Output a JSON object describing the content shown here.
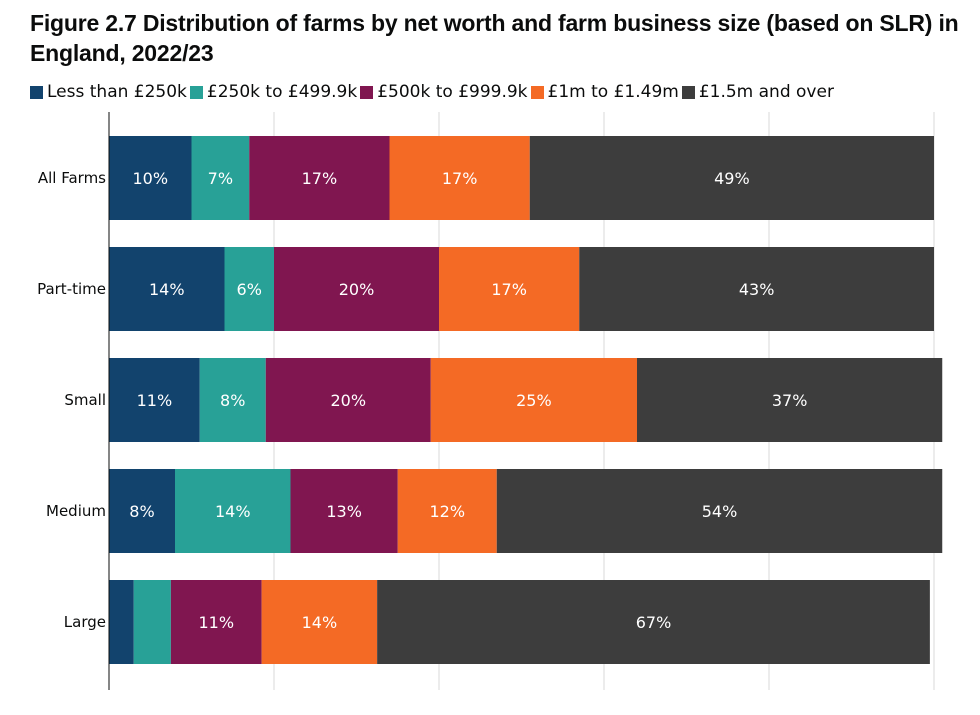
{
  "title": "Figure 2.7 Distribution of farms by net worth and farm business size (based on SLR) in England, 2022/23",
  "chart_data": {
    "type": "bar",
    "orientation": "horizontal",
    "stacked": true,
    "title": "Figure 2.7 Distribution of farms by net worth and farm business size (based on SLR) in England, 2022/23",
    "xlabel": "",
    "ylabel": "",
    "xlim": [
      0,
      100
    ],
    "grid": true,
    "legend_position": "top",
    "categories": [
      "All Farms",
      "Part-time",
      "Small",
      "Medium",
      "Large"
    ],
    "series": [
      {
        "name": "Less than £250k",
        "color": "#12436d",
        "values": [
          10,
          14,
          11,
          8,
          3
        ],
        "labels": [
          "10%",
          "14%",
          "11%",
          "8%",
          ""
        ]
      },
      {
        "name": "£250k to £499.9k",
        "color": "#28a197",
        "values": [
          7,
          6,
          8,
          14,
          4.5
        ],
        "labels": [
          "7%",
          "6%",
          "8%",
          "14%",
          ""
        ]
      },
      {
        "name": "£500k to £999.9k",
        "color": "#801650",
        "values": [
          17,
          20,
          20,
          13,
          11
        ],
        "labels": [
          "17%",
          "20%",
          "20%",
          "13%",
          "11%"
        ]
      },
      {
        "name": "£1m to £1.49m",
        "color": "#f46a25",
        "values": [
          17,
          17,
          25,
          12,
          14
        ],
        "labels": [
          "17%",
          "17%",
          "25%",
          "12%",
          "14%"
        ]
      },
      {
        "name": "£1.5m and over",
        "color": "#3d3d3d",
        "values": [
          49,
          43,
          37,
          54,
          67
        ],
        "labels": [
          "49%",
          "43%",
          "37%",
          "54%",
          "67%"
        ]
      }
    ]
  }
}
